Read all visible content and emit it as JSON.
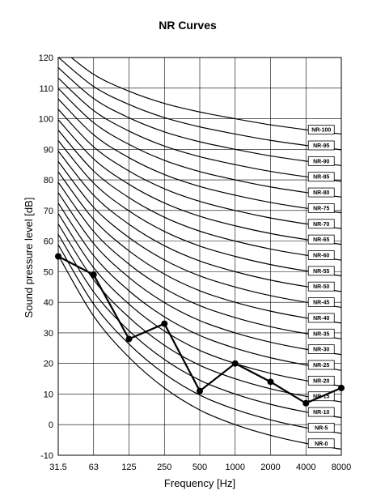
{
  "chart_data": {
    "type": "line",
    "title": "NR Curves",
    "xlabel": "Frequency [Hz]",
    "ylabel": "Sound pressure level [dB]",
    "x_categories": [
      "31.5",
      "63",
      "125",
      "250",
      "500",
      "1000",
      "2000",
      "4000",
      "8000"
    ],
    "ylim": [
      -10,
      120
    ],
    "y_ticks": [
      -10,
      0,
      10,
      20,
      30,
      40,
      50,
      60,
      70,
      80,
      90,
      100,
      110,
      120
    ],
    "grid": true,
    "nr_curve_labels": [
      "NR-100",
      "NR-95",
      "NR-90",
      "NR-85",
      "NR-80",
      "NR-75",
      "NR-70",
      "NR-65",
      "NR-60",
      "NR-55",
      "NR-50",
      "NR-45",
      "NR-40",
      "NR-35",
      "NR-30",
      "NR-25",
      "NR-20",
      "NR-15",
      "NR-10",
      "NR-5",
      "NR-0"
    ],
    "measured_series": {
      "values": [
        55,
        49,
        28,
        33,
        11,
        20,
        14,
        7,
        12
      ]
    },
    "colors": {
      "curves": "#000000",
      "grid": "#000000",
      "background": "#ffffff"
    }
  }
}
